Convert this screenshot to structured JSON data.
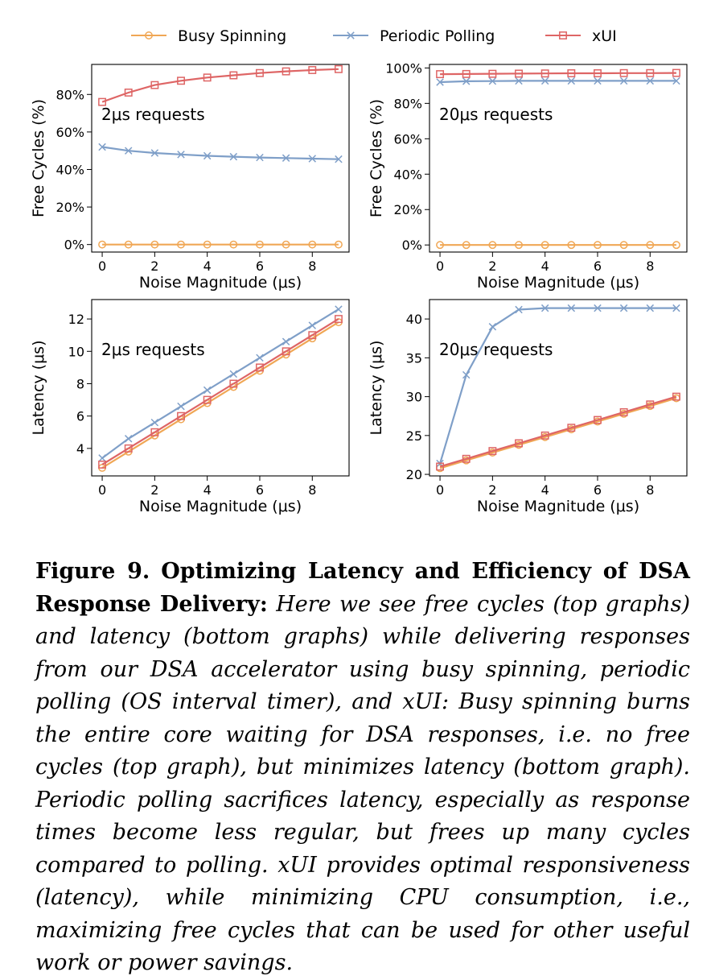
{
  "legend": {
    "placement": "top-center",
    "entries": [
      {
        "label": "Busy Spinning",
        "color": "#f0a755",
        "marker": "circle"
      },
      {
        "label": "Periodic Polling",
        "color": "#7f9fc8",
        "marker": "x"
      },
      {
        "label": "xUI",
        "color": "#de6565",
        "marker": "square"
      }
    ]
  },
  "chart_data": [
    {
      "type": "line",
      "annotation": "2μs requests",
      "xlabel": "Noise Magnitude (μs)",
      "ylabel": "Free Cycles (%)",
      "x": [
        0,
        1,
        2,
        3,
        4,
        5,
        6,
        7,
        8,
        9
      ],
      "xticks": [
        0,
        2,
        4,
        6,
        8
      ],
      "xlim": [
        -0.4,
        9.4
      ],
      "yticks": [
        "0%",
        "20%",
        "40%",
        "60%",
        "80%"
      ],
      "ytick_values": [
        0,
        20,
        40,
        60,
        80
      ],
      "ylim": [
        -4,
        96
      ],
      "series": [
        {
          "name": "Busy Spinning",
          "values": [
            0,
            0,
            0,
            0,
            0,
            0,
            0,
            0,
            0,
            0
          ]
        },
        {
          "name": "Periodic Polling",
          "values": [
            52,
            50,
            48.8,
            48,
            47.3,
            46.8,
            46.4,
            46.1,
            45.8,
            45.5
          ]
        },
        {
          "name": "xUI",
          "values": [
            76,
            81,
            85,
            87.3,
            89,
            90.2,
            91.4,
            92.3,
            93,
            93.5
          ]
        }
      ]
    },
    {
      "type": "line",
      "annotation": "20μs requests",
      "xlabel": "Noise Magnitude (μs)",
      "ylabel": "Free Cycles (%)",
      "x": [
        0,
        1,
        2,
        3,
        4,
        5,
        6,
        7,
        8,
        9
      ],
      "xticks": [
        0,
        2,
        4,
        6,
        8
      ],
      "xlim": [
        -0.4,
        9.4
      ],
      "yticks": [
        "0%",
        "20%",
        "40%",
        "60%",
        "80%",
        "100%"
      ],
      "ytick_values": [
        0,
        20,
        40,
        60,
        80,
        100
      ],
      "ylim": [
        -4,
        102
      ],
      "series": [
        {
          "name": "Busy Spinning",
          "values": [
            0,
            0,
            0,
            0,
            0,
            0,
            0,
            0,
            0,
            0
          ]
        },
        {
          "name": "Periodic Polling",
          "values": [
            92,
            92.5,
            92.6,
            92.7,
            92.7,
            92.7,
            92.7,
            92.7,
            92.7,
            92.7
          ]
        },
        {
          "name": "xUI",
          "values": [
            96.5,
            96.6,
            96.7,
            96.8,
            96.9,
            97,
            97,
            97.1,
            97.1,
            97.2
          ]
        }
      ]
    },
    {
      "type": "line",
      "annotation": "2μs requests",
      "xlabel": "Noise Magnitude (μs)",
      "ylabel": "Latency (μs)",
      "x": [
        0,
        1,
        2,
        3,
        4,
        5,
        6,
        7,
        8,
        9
      ],
      "xticks": [
        0,
        2,
        4,
        6,
        8
      ],
      "xlim": [
        -0.4,
        9.4
      ],
      "yticks": [
        "4",
        "6",
        "8",
        "10",
        "12"
      ],
      "ytick_values": [
        4,
        6,
        8,
        10,
        12
      ],
      "ylim": [
        2.3,
        13.2
      ],
      "series": [
        {
          "name": "Busy Spinning",
          "values": [
            2.8,
            3.8,
            4.8,
            5.8,
            6.8,
            7.8,
            8.8,
            9.8,
            10.8,
            11.8
          ]
        },
        {
          "name": "Periodic Polling",
          "values": [
            3.4,
            4.6,
            5.6,
            6.6,
            7.6,
            8.6,
            9.6,
            10.6,
            11.6,
            12.6
          ]
        },
        {
          "name": "xUI",
          "values": [
            3.0,
            4.0,
            5.0,
            6.0,
            7.0,
            8.0,
            9.0,
            10.0,
            11.0,
            12.0
          ]
        }
      ]
    },
    {
      "type": "line",
      "annotation": "20μs requests",
      "xlabel": "Noise Magnitude (μs)",
      "ylabel": "Latency (μs)",
      "x": [
        0,
        1,
        2,
        3,
        4,
        5,
        6,
        7,
        8,
        9
      ],
      "xticks": [
        0,
        2,
        4,
        6,
        8
      ],
      "xlim": [
        -0.4,
        9.4
      ],
      "yticks": [
        "20",
        "25",
        "30",
        "35",
        "40"
      ],
      "ytick_values": [
        20,
        25,
        30,
        35,
        40
      ],
      "ylim": [
        19.8,
        42.5
      ],
      "series": [
        {
          "name": "Busy Spinning",
          "values": [
            20.8,
            21.8,
            22.8,
            23.8,
            24.8,
            25.8,
            26.8,
            27.8,
            28.8,
            29.8
          ]
        },
        {
          "name": "Periodic Polling",
          "values": [
            21.4,
            32.8,
            39,
            41.2,
            41.4,
            41.4,
            41.4,
            41.4,
            41.4,
            41.4
          ]
        },
        {
          "name": "xUI",
          "values": [
            21.0,
            22.0,
            23.0,
            24.0,
            25.0,
            26.0,
            27.0,
            28.0,
            29.0,
            30.0
          ]
        }
      ]
    }
  ],
  "caption": {
    "label": "Figure 9.",
    "title": "Optimizing Latency and Efficiency of DSA Response Delivery:",
    "body": "Here we see free cycles (top graphs) and latency (bottom graphs) while delivering responses from our DSA accelerator using busy spinning, periodic polling (OS interval timer), and xUI: Busy spinning burns the entire core waiting for DSA responses, i.e. no free cycles (top graph), but minimizes latency (bottom graph). Periodic polling sacrifices latency, especially as response times become less regular, but frees up many cycles compared to polling. xUI provides optimal responsiveness (latency), while minimizing CPU consumption, i.e., maximizing free cycles that can be used for other useful work or power savings."
  }
}
